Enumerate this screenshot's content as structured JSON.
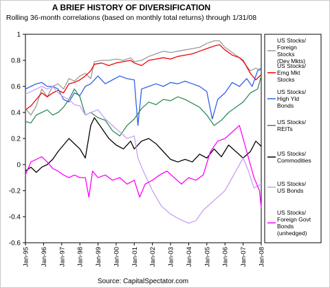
{
  "chart_data": {
    "type": "line",
    "title": "A BRIEF HISTORY OF DIVERSIFICATION",
    "subtitle": "Rolling 36-month correlations (based on monthly total returns) through 1/31/08",
    "source": "Source: CapitalSpectator.com",
    "ylim": [
      -0.6,
      1
    ],
    "yticks": [
      "1",
      "0.8",
      "0.6",
      "0.4",
      "0.2",
      "0",
      "-0.2",
      "-0.4",
      "-0.6"
    ],
    "xlim": [
      "Jan-95",
      "Jan-08"
    ],
    "xticks": [
      "Jan-95",
      "Jan-96",
      "Jan-97",
      "Jan-98",
      "Jan-99",
      "Jan-00",
      "Jan-01",
      "Jan-02",
      "Jan-03",
      "Jan-04",
      "Jan-05",
      "Jan-06",
      "Jan-07",
      "Jan-08"
    ],
    "grid": false,
    "legend_position": "right",
    "series": [
      {
        "name": "US Stocks/ Foreign Stocks (Dev Mkts)",
        "legend_lines": [
          "US Stocks/",
          "Foreign",
          "Stocks",
          "(Dev Mkts)"
        ],
        "color": "#999999",
        "points": [
          [
            0,
            0.43
          ],
          [
            0.3,
            0.38
          ],
          [
            0.6,
            0.45
          ],
          [
            0.9,
            0.58
          ],
          [
            1.2,
            0.52
          ],
          [
            1.5,
            0.6
          ],
          [
            1.8,
            0.62
          ],
          [
            2.1,
            0.58
          ],
          [
            2.4,
            0.66
          ],
          [
            2.7,
            0.64
          ],
          [
            3.0,
            0.68
          ],
          [
            3.3,
            0.7
          ],
          [
            3.6,
            0.66
          ],
          [
            3.8,
            0.79
          ],
          [
            4.2,
            0.8
          ],
          [
            4.6,
            0.8
          ],
          [
            5.0,
            0.81
          ],
          [
            5.4,
            0.8
          ],
          [
            5.8,
            0.82
          ],
          [
            6.0,
            0.79
          ],
          [
            6.4,
            0.8
          ],
          [
            6.8,
            0.83
          ],
          [
            7.2,
            0.85
          ],
          [
            7.6,
            0.87
          ],
          [
            8.0,
            0.86
          ],
          [
            8.4,
            0.87
          ],
          [
            8.8,
            0.88
          ],
          [
            9.2,
            0.89
          ],
          [
            9.6,
            0.9
          ],
          [
            10.0,
            0.93
          ],
          [
            10.4,
            0.95
          ],
          [
            10.7,
            0.95
          ],
          [
            11.0,
            0.9
          ],
          [
            11.4,
            0.86
          ],
          [
            11.8,
            0.82
          ],
          [
            12.0,
            0.79
          ],
          [
            12.4,
            0.72
          ],
          [
            12.7,
            0.74
          ],
          [
            13.0,
            0.72
          ]
        ]
      },
      {
        "name": "US Stocks/ Emg Mkt Stocks",
        "legend_lines": [
          "US Stocks/",
          "Emg Mkt",
          "Stocks"
        ],
        "color": "#ee0000",
        "points": [
          [
            0,
            0.42
          ],
          [
            0.3,
            0.45
          ],
          [
            0.6,
            0.5
          ],
          [
            0.9,
            0.55
          ],
          [
            1.2,
            0.52
          ],
          [
            1.5,
            0.55
          ],
          [
            1.8,
            0.57
          ],
          [
            2.1,
            0.55
          ],
          [
            2.4,
            0.62
          ],
          [
            2.7,
            0.63
          ],
          [
            3.0,
            0.65
          ],
          [
            3.3,
            0.68
          ],
          [
            3.6,
            0.72
          ],
          [
            3.8,
            0.77
          ],
          [
            4.2,
            0.78
          ],
          [
            4.6,
            0.76
          ],
          [
            5.0,
            0.78
          ],
          [
            5.4,
            0.79
          ],
          [
            5.8,
            0.8
          ],
          [
            6.0,
            0.78
          ],
          [
            6.4,
            0.76
          ],
          [
            6.8,
            0.8
          ],
          [
            7.2,
            0.81
          ],
          [
            7.6,
            0.82
          ],
          [
            8.0,
            0.81
          ],
          [
            8.4,
            0.83
          ],
          [
            8.8,
            0.84
          ],
          [
            9.2,
            0.85
          ],
          [
            9.6,
            0.87
          ],
          [
            10.0,
            0.89
          ],
          [
            10.4,
            0.91
          ],
          [
            10.7,
            0.92
          ],
          [
            11.0,
            0.88
          ],
          [
            11.4,
            0.84
          ],
          [
            11.8,
            0.82
          ],
          [
            12.0,
            0.8
          ],
          [
            12.4,
            0.7
          ],
          [
            12.7,
            0.65
          ],
          [
            13.0,
            0.69
          ]
        ]
      },
      {
        "name": "US Stocks/ High Yld Bonds",
        "legend_lines": [
          "US Stocks/",
          "High Yld",
          "Bonds"
        ],
        "color": "#2f5fe8",
        "points": [
          [
            0,
            0.58
          ],
          [
            0.3,
            0.6
          ],
          [
            0.6,
            0.62
          ],
          [
            0.9,
            0.63
          ],
          [
            1.2,
            0.6
          ],
          [
            1.5,
            0.6
          ],
          [
            1.8,
            0.58
          ],
          [
            2.1,
            0.5
          ],
          [
            2.4,
            0.48
          ],
          [
            2.7,
            0.55
          ],
          [
            3.0,
            0.53
          ],
          [
            3.3,
            0.6
          ],
          [
            3.6,
            0.62
          ],
          [
            4.0,
            0.68
          ],
          [
            4.4,
            0.62
          ],
          [
            4.8,
            0.65
          ],
          [
            5.2,
            0.68
          ],
          [
            5.6,
            0.66
          ],
          [
            6.0,
            0.65
          ],
          [
            6.2,
            0.3
          ],
          [
            6.4,
            0.58
          ],
          [
            6.8,
            0.6
          ],
          [
            7.2,
            0.62
          ],
          [
            7.6,
            0.6
          ],
          [
            8.0,
            0.63
          ],
          [
            8.4,
            0.62
          ],
          [
            8.8,
            0.64
          ],
          [
            9.2,
            0.62
          ],
          [
            9.6,
            0.6
          ],
          [
            10.0,
            0.56
          ],
          [
            10.3,
            0.35
          ],
          [
            10.6,
            0.5
          ],
          [
            11.0,
            0.55
          ],
          [
            11.4,
            0.63
          ],
          [
            11.8,
            0.6
          ],
          [
            12.2,
            0.66
          ],
          [
            12.5,
            0.6
          ],
          [
            12.8,
            0.72
          ],
          [
            13.0,
            0.74
          ]
        ]
      },
      {
        "name": "US Stocks/ REITs",
        "legend_lines": [
          "US Stocks/",
          "REITs"
        ],
        "color": "#2e8b57",
        "points": [
          [
            0,
            0.33
          ],
          [
            0.3,
            0.32
          ],
          [
            0.6,
            0.38
          ],
          [
            0.9,
            0.4
          ],
          [
            1.2,
            0.42
          ],
          [
            1.5,
            0.38
          ],
          [
            1.8,
            0.4
          ],
          [
            2.1,
            0.44
          ],
          [
            2.4,
            0.5
          ],
          [
            2.7,
            0.58
          ],
          [
            3.0,
            0.52
          ],
          [
            3.3,
            0.38
          ],
          [
            3.6,
            0.4
          ],
          [
            4.0,
            0.36
          ],
          [
            4.4,
            0.34
          ],
          [
            4.8,
            0.26
          ],
          [
            5.2,
            0.22
          ],
          [
            5.6,
            0.3
          ],
          [
            6.0,
            0.35
          ],
          [
            6.4,
            0.43
          ],
          [
            6.8,
            0.48
          ],
          [
            7.2,
            0.46
          ],
          [
            7.6,
            0.5
          ],
          [
            8.0,
            0.49
          ],
          [
            8.4,
            0.52
          ],
          [
            8.8,
            0.5
          ],
          [
            9.2,
            0.47
          ],
          [
            9.6,
            0.44
          ],
          [
            10.0,
            0.38
          ],
          [
            10.4,
            0.3
          ],
          [
            10.8,
            0.34
          ],
          [
            11.2,
            0.4
          ],
          [
            11.6,
            0.44
          ],
          [
            12.0,
            0.48
          ],
          [
            12.4,
            0.55
          ],
          [
            12.8,
            0.58
          ],
          [
            13.0,
            0.68
          ]
        ]
      },
      {
        "name": "US Stocks/ Commodities",
        "legend_lines": [
          "US Stocks/",
          "Commodities"
        ],
        "color": "#000000",
        "points": [
          [
            0,
            -0.05
          ],
          [
            0.3,
            -0.02
          ],
          [
            0.6,
            -0.06
          ],
          [
            0.9,
            -0.02
          ],
          [
            1.2,
            0.0
          ],
          [
            1.5,
            0.04
          ],
          [
            1.8,
            0.1
          ],
          [
            2.1,
            0.15
          ],
          [
            2.4,
            0.2
          ],
          [
            2.7,
            0.16
          ],
          [
            3.0,
            0.12
          ],
          [
            3.3,
            0.05
          ],
          [
            3.6,
            0.3
          ],
          [
            3.8,
            0.36
          ],
          [
            4.2,
            0.28
          ],
          [
            4.6,
            0.2
          ],
          [
            5.0,
            0.15
          ],
          [
            5.4,
            0.12
          ],
          [
            5.8,
            0.18
          ],
          [
            6.0,
            0.12
          ],
          [
            6.4,
            0.18
          ],
          [
            6.8,
            0.2
          ],
          [
            7.2,
            0.16
          ],
          [
            7.6,
            0.1
          ],
          [
            8.0,
            0.04
          ],
          [
            8.4,
            0.02
          ],
          [
            8.8,
            0.04
          ],
          [
            9.2,
            0.02
          ],
          [
            9.6,
            0.08
          ],
          [
            10.0,
            0.05
          ],
          [
            10.4,
            0.12
          ],
          [
            10.8,
            0.06
          ],
          [
            11.2,
            0.15
          ],
          [
            11.6,
            0.1
          ],
          [
            12.0,
            0.05
          ],
          [
            12.4,
            0.1
          ],
          [
            12.7,
            0.18
          ],
          [
            13.0,
            0.14
          ]
        ]
      },
      {
        "name": "US Stocks/ US Bonds",
        "legend_lines": [
          "US Stocks/",
          "US Bonds"
        ],
        "color": "#c8a0f0",
        "points": [
          [
            0,
            0.54
          ],
          [
            0.3,
            0.56
          ],
          [
            0.6,
            0.58
          ],
          [
            0.9,
            0.6
          ],
          [
            1.2,
            0.58
          ],
          [
            1.5,
            0.6
          ],
          [
            1.8,
            0.55
          ],
          [
            2.1,
            0.52
          ],
          [
            2.4,
            0.5
          ],
          [
            2.7,
            0.46
          ],
          [
            3.0,
            0.45
          ],
          [
            3.3,
            0.38
          ],
          [
            3.6,
            0.4
          ],
          [
            4.0,
            0.42
          ],
          [
            4.4,
            0.35
          ],
          [
            4.8,
            0.3
          ],
          [
            5.2,
            0.25
          ],
          [
            5.6,
            0.2
          ],
          [
            6.0,
            0.22
          ],
          [
            6.2,
            0.05
          ],
          [
            6.5,
            -0.05
          ],
          [
            7.0,
            -0.2
          ],
          [
            7.5,
            -0.32
          ],
          [
            8.0,
            -0.38
          ],
          [
            8.5,
            -0.42
          ],
          [
            9.0,
            -0.45
          ],
          [
            9.4,
            -0.43
          ],
          [
            9.8,
            -0.35
          ],
          [
            10.2,
            -0.3
          ],
          [
            10.6,
            -0.25
          ],
          [
            11.0,
            -0.2
          ],
          [
            11.4,
            -0.1
          ],
          [
            11.8,
            0.0
          ],
          [
            12.0,
            0.05
          ],
          [
            12.3,
            -0.05
          ],
          [
            12.6,
            -0.18
          ],
          [
            13.0,
            -0.15
          ]
        ]
      },
      {
        "name": "US Stocks/ Foreign Govt Bonds (unhedged)",
        "legend_lines": [
          "US Stocks/",
          "Foreign Govt",
          "Bonds",
          "(unhedged)"
        ],
        "color": "#ff00ff",
        "points": [
          [
            0,
            -0.08
          ],
          [
            0.3,
            0.02
          ],
          [
            0.6,
            0.04
          ],
          [
            0.9,
            0.06
          ],
          [
            1.2,
            0.02
          ],
          [
            1.5,
            -0.03
          ],
          [
            1.8,
            -0.05
          ],
          [
            2.1,
            -0.08
          ],
          [
            2.4,
            -0.1
          ],
          [
            2.7,
            -0.08
          ],
          [
            3.0,
            -0.1
          ],
          [
            3.3,
            -0.1
          ],
          [
            3.5,
            -0.25
          ],
          [
            3.7,
            -0.05
          ],
          [
            4.0,
            -0.1
          ],
          [
            4.4,
            -0.08
          ],
          [
            4.8,
            -0.12
          ],
          [
            5.2,
            -0.1
          ],
          [
            5.6,
            -0.15
          ],
          [
            6.0,
            -0.12
          ],
          [
            6.3,
            -0.25
          ],
          [
            6.6,
            -0.15
          ],
          [
            7.0,
            -0.12
          ],
          [
            7.4,
            -0.08
          ],
          [
            7.8,
            -0.05
          ],
          [
            8.2,
            -0.1
          ],
          [
            8.6,
            -0.15
          ],
          [
            9.0,
            -0.1
          ],
          [
            9.4,
            -0.12
          ],
          [
            9.8,
            -0.08
          ],
          [
            10.2,
            0.1
          ],
          [
            10.6,
            0.18
          ],
          [
            11.0,
            0.2
          ],
          [
            11.4,
            0.25
          ],
          [
            11.8,
            0.3
          ],
          [
            12.0,
            0.2
          ],
          [
            12.3,
            0.05
          ],
          [
            12.6,
            -0.1
          ],
          [
            12.9,
            -0.2
          ],
          [
            13.0,
            -0.33
          ]
        ]
      }
    ]
  }
}
